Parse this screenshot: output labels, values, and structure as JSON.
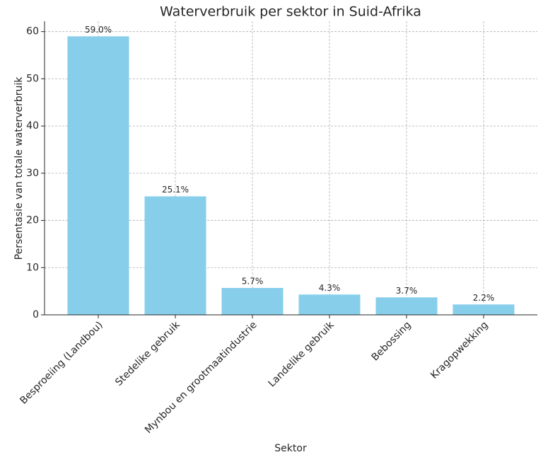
{
  "chart_data": {
    "type": "bar",
    "title": "Waterverbruik per sektor in Suid-Afrika",
    "xlabel": "Sektor",
    "ylabel": "Persentasie van totale waterverbruik",
    "categories": [
      "Besproeiing (Landbou)",
      "Stedelike gebruik",
      "Mynbou en grootmaatindustrie",
      "Landelike gebruik",
      "Bebossing",
      "Kragopwekking"
    ],
    "values": [
      59.0,
      25.1,
      5.7,
      4.3,
      3.7,
      2.2
    ],
    "value_labels": [
      "59.0%",
      "25.1%",
      "5.7%",
      "4.3%",
      "3.7%",
      "2.2%"
    ],
    "color": "#87ceeb",
    "ylim": [
      0,
      62.2
    ],
    "yticks": [
      0,
      10,
      20,
      30,
      40,
      50,
      60
    ],
    "grid": true
  }
}
